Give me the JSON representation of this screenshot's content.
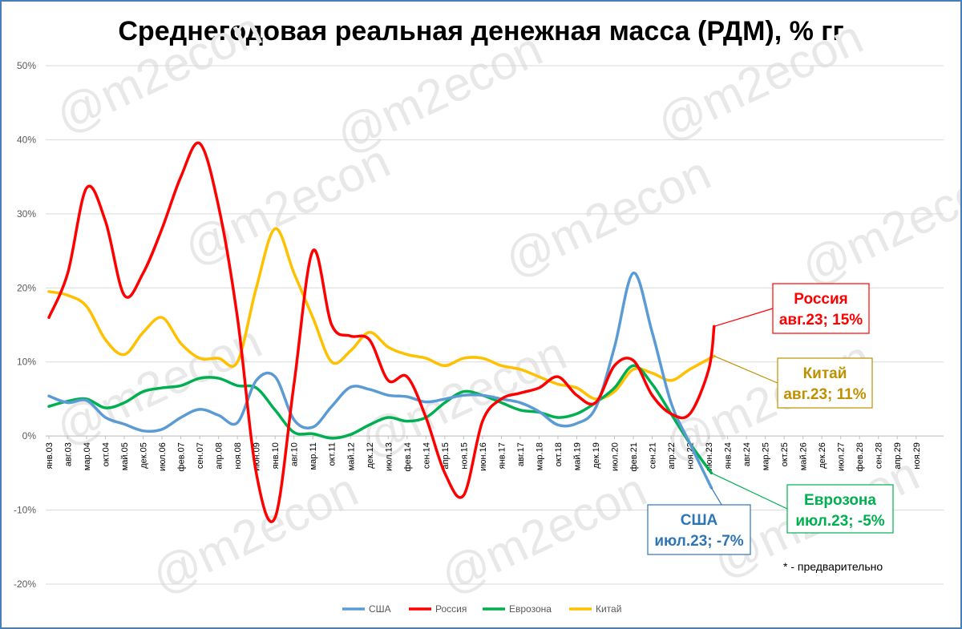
{
  "chart_data": {
    "type": "line",
    "title": "Среднегодовая реальная денежная масса (РДМ), % гг",
    "watermark": "@m2econ",
    "note": "* - предварительно",
    "ylim": [
      -0.2,
      0.5
    ],
    "yticks": [
      "50%",
      "40%",
      "30%",
      "20%",
      "10%",
      "0%",
      "-10%",
      "-20%"
    ],
    "ytick_values": [
      0.5,
      0.4,
      0.3,
      0.2,
      0.1,
      0.0,
      -0.1,
      -0.2
    ],
    "grid": true,
    "legend_position": "bottom",
    "x_start": "янв.03",
    "x_end": "ноя.29",
    "x_tick_labels": [
      "янв.03",
      "авг.03",
      "мар.04",
      "окт.04",
      "май.05",
      "дек.05",
      "июл.06",
      "фев.07",
      "сен.07",
      "апр.08",
      "ноя.08",
      "июн.09",
      "янв.10",
      "авг.10",
      "мар.11",
      "окт.11",
      "май.12",
      "дек.12",
      "июл.13",
      "фев.14",
      "сен.14",
      "апр.15",
      "ноя.15",
      "июн.16",
      "янв.17",
      "авг.17",
      "мар.18",
      "окт.18",
      "май.19",
      "дек.19",
      "июл.20",
      "фев.21",
      "сен.21",
      "апр.22",
      "ноя.22",
      "июн.23",
      "янв.24",
      "авг.24",
      "мар.25",
      "окт.25",
      "май.26",
      "дек.26",
      "июл.27",
      "фев.28",
      "сен.28",
      "апр.29",
      "ноя.29"
    ],
    "series": [
      {
        "name": "США",
        "color": "#5b9bd5",
        "x": [
          "янв.03",
          "авг.03",
          "мар.04",
          "окт.04",
          "май.05",
          "дек.05",
          "июл.06",
          "фев.07",
          "сен.07",
          "апр.08",
          "ноя.08",
          "июн.09",
          "янв.10",
          "авг.10",
          "мар.11",
          "окт.11",
          "май.12",
          "дек.12",
          "июл.13",
          "фев.14",
          "сен.14",
          "апр.15",
          "ноя.15",
          "июн.16",
          "янв.17",
          "авг.17",
          "мар.18",
          "окт.18",
          "май.19",
          "дек.19",
          "июл.20",
          "фев.21",
          "сен.21",
          "апр.22",
          "ноя.22",
          "июл.23"
        ],
        "values": [
          0.054,
          0.045,
          0.048,
          0.025,
          0.016,
          0.007,
          0.009,
          0.025,
          0.036,
          0.028,
          0.018,
          0.075,
          0.08,
          0.022,
          0.012,
          0.04,
          0.066,
          0.063,
          0.055,
          0.053,
          0.046,
          0.05,
          0.055,
          0.055,
          0.05,
          0.045,
          0.033,
          0.015,
          0.017,
          0.038,
          0.12,
          0.22,
          0.14,
          0.045,
          -0.01,
          -0.07
        ]
      },
      {
        "name": "Россия",
        "color": "#ff0000",
        "x": [
          "янв.03",
          "авг.03",
          "мар.04",
          "окт.04",
          "май.05",
          "дек.05",
          "июл.06",
          "фев.07",
          "сен.07",
          "апр.08",
          "ноя.08",
          "июн.09",
          "янв.10",
          "авг.10",
          "мар.11",
          "окт.11",
          "май.12",
          "дек.12",
          "июл.13",
          "фев.14",
          "сен.14",
          "апр.15",
          "ноя.15",
          "июн.16",
          "янв.17",
          "авг.17",
          "мар.18",
          "окт.18",
          "май.19",
          "дек.19",
          "июл.20",
          "фев.21",
          "сен.21",
          "апр.22",
          "ноя.22",
          "июн.23",
          "авг.23"
        ],
        "values": [
          0.16,
          0.22,
          0.335,
          0.29,
          0.19,
          0.22,
          0.28,
          0.35,
          0.395,
          0.31,
          0.16,
          -0.05,
          -0.11,
          0.07,
          0.25,
          0.15,
          0.135,
          0.13,
          0.075,
          0.08,
          0.025,
          -0.05,
          -0.08,
          0.02,
          0.05,
          0.058,
          0.065,
          0.08,
          0.055,
          0.045,
          0.095,
          0.102,
          0.055,
          0.03,
          0.03,
          0.09,
          0.148
        ]
      },
      {
        "name": "Еврозона",
        "color": "#00b050",
        "x": [
          "янв.03",
          "авг.03",
          "мар.04",
          "окт.04",
          "май.05",
          "дек.05",
          "июл.06",
          "фев.07",
          "сен.07",
          "апр.08",
          "ноя.08",
          "июн.09",
          "янв.10",
          "авг.10",
          "мар.11",
          "окт.11",
          "май.12",
          "дек.12",
          "июл.13",
          "фев.14",
          "сен.14",
          "апр.15",
          "ноя.15",
          "июн.16",
          "янв.17",
          "авг.17",
          "мар.18",
          "окт.18",
          "май.19",
          "дек.19",
          "июл.20",
          "фев.21",
          "сен.21",
          "апр.22",
          "ноя.22",
          "июл.23"
        ],
        "values": [
          0.04,
          0.047,
          0.05,
          0.038,
          0.045,
          0.06,
          0.065,
          0.068,
          0.078,
          0.078,
          0.068,
          0.065,
          0.035,
          0.005,
          0.003,
          -0.003,
          0.002,
          0.015,
          0.025,
          0.02,
          0.025,
          0.045,
          0.06,
          0.055,
          0.045,
          0.035,
          0.032,
          0.025,
          0.03,
          0.045,
          0.065,
          0.095,
          0.07,
          0.03,
          -0.01,
          -0.05
        ]
      },
      {
        "name": "Китай",
        "color": "#ffc000",
        "x": [
          "янв.03",
          "авг.03",
          "мар.04",
          "окт.04",
          "май.05",
          "дек.05",
          "июл.06",
          "фев.07",
          "сен.07",
          "апр.08",
          "ноя.08",
          "июн.09",
          "янв.10",
          "авг.10",
          "мар.11",
          "окт.11",
          "май.12",
          "дек.12",
          "июл.13",
          "фев.14",
          "сен.14",
          "апр.15",
          "ноя.15",
          "июн.16",
          "янв.17",
          "авг.17",
          "мар.18",
          "окт.18",
          "май.19",
          "дек.19",
          "июл.20",
          "фев.21",
          "сен.21",
          "апр.22",
          "ноя.22",
          "авг.23"
        ],
        "values": [
          0.195,
          0.19,
          0.175,
          0.13,
          0.11,
          0.14,
          0.16,
          0.125,
          0.105,
          0.105,
          0.1,
          0.2,
          0.28,
          0.22,
          0.16,
          0.1,
          0.115,
          0.14,
          0.12,
          0.11,
          0.105,
          0.095,
          0.105,
          0.105,
          0.095,
          0.09,
          0.08,
          0.07,
          0.065,
          0.05,
          0.06,
          0.09,
          0.085,
          0.075,
          0.09,
          0.108
        ]
      }
    ],
    "annotations": [
      {
        "series": "Россия",
        "title": "Россия",
        "sub": "авг.23; 15%",
        "color": "#ff0000",
        "text_color": "#ff0000",
        "x": "авг.23",
        "y": 0.148
      },
      {
        "series": "Китай",
        "title": "Китай",
        "sub": "авг.23; 11%",
        "color": "#bf9000",
        "text_color": "#bf9000",
        "x": "авг.23",
        "y": 0.108
      },
      {
        "series": "Еврозона",
        "title": "Еврозона",
        "sub": "июл.23; -5%",
        "color": "#00b050",
        "text_color": "#00b050",
        "x": "июл.23",
        "y": -0.05
      },
      {
        "series": "США",
        "title": "США",
        "sub": "июл.23; -7%",
        "color": "#2e75b6",
        "text_color": "#2e75b6",
        "x": "июл.23",
        "y": -0.07
      }
    ]
  }
}
